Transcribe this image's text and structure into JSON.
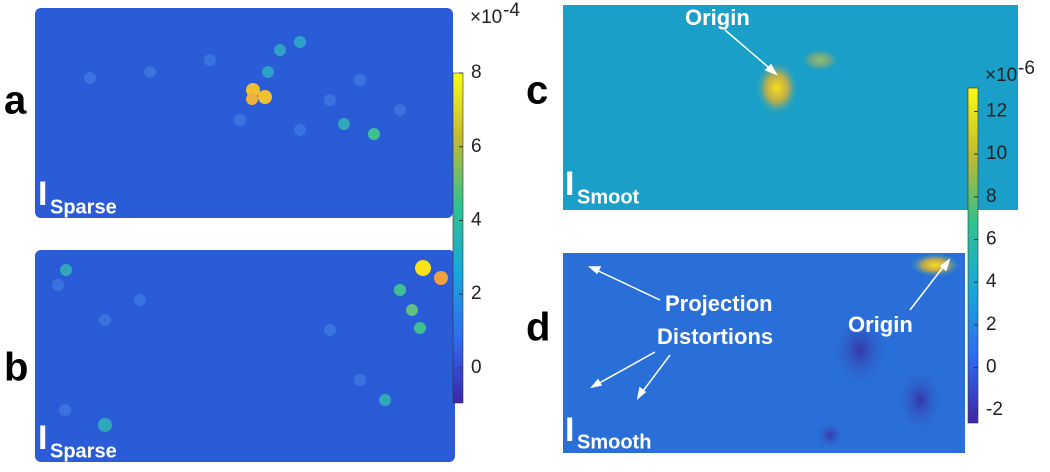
{
  "chart_data": [
    {
      "type": "heatmap",
      "panels": [
        {
          "label": "a",
          "image_label": "I",
          "image_subscript": "Sparse"
        },
        {
          "label": "b",
          "image_label": "I",
          "image_subscript": "Sparse"
        }
      ],
      "colorbar": {
        "scale_label": "×10",
        "scale_exponent": "-4",
        "ylim": [
          -0.95,
          8
        ],
        "yticks": [
          0,
          2,
          4,
          6,
          8
        ]
      }
    },
    {
      "type": "heatmap",
      "panels": [
        {
          "label": "c",
          "image_label": "I",
          "image_subscript": "Smoot",
          "annotations": [
            "Origin"
          ]
        },
        {
          "label": "d",
          "image_label": "I",
          "image_subscript": "Smooth",
          "annotations": [
            "Projection",
            "Distortions",
            "Origin"
          ]
        }
      ],
      "colorbar": {
        "scale_label": "×10",
        "scale_exponent": "-6",
        "ylim": [
          -2.6,
          13.1
        ],
        "yticks": [
          -2,
          0,
          2,
          4,
          6,
          8,
          10,
          12
        ]
      }
    }
  ]
}
